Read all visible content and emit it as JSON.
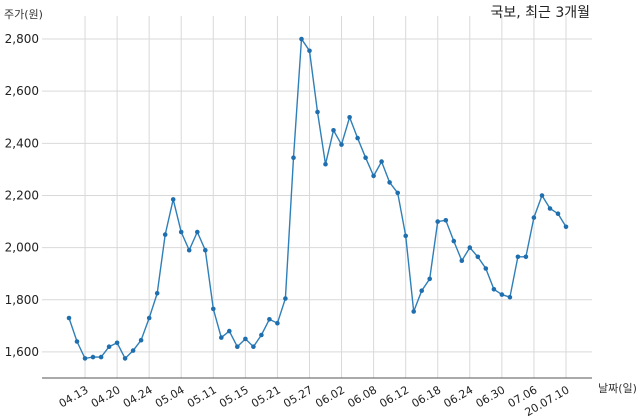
{
  "chart_data": {
    "type": "line",
    "title": "국보, 최근 3개월",
    "ylabel": "주가(원)",
    "xlabel": "날짜(일)",
    "ylim": [
      1500,
      2850
    ],
    "yticks": [
      1600,
      1800,
      2000,
      2200,
      2400,
      2600,
      2800
    ],
    "ytick_labels": [
      "1,600",
      "1,800",
      "2,000",
      "2,200",
      "2,400",
      "2,600",
      "2,800"
    ],
    "xtick_labels": [
      "04.13",
      "04.20",
      "04.24",
      "05.04",
      "05.11",
      "05.15",
      "05.21",
      "05.27",
      "06.02",
      "06.08",
      "06.12",
      "06.18",
      "06.24",
      "06.30",
      "07.06",
      "20.07.10"
    ],
    "xtick_index": [
      2,
      6,
      10,
      14,
      18,
      22,
      26,
      30,
      34,
      38,
      42,
      46,
      50,
      54,
      58,
      62
    ],
    "grid": true,
    "color": "#2f7fb8",
    "series": [
      {
        "values": [
          1730,
          1640,
          1575,
          1580,
          1580,
          1620,
          1635,
          1575,
          1605,
          1645,
          1730,
          1825,
          2050,
          2185,
          2060,
          1990,
          2060,
          1990,
          1765,
          1655,
          1680,
          1620,
          1650,
          1620,
          1665,
          1725,
          1710,
          1805,
          2345,
          2800,
          2755,
          2520,
          2320,
          2450,
          2395,
          2500,
          2420,
          2345,
          2275,
          2330,
          2250,
          2210,
          2045,
          1755,
          1835,
          1880,
          2100,
          2105,
          2025,
          1950,
          2000,
          1965,
          1920,
          1840,
          1820,
          1810,
          1965,
          1965,
          2115,
          2200,
          2150,
          2130,
          2080
        ]
      }
    ]
  }
}
